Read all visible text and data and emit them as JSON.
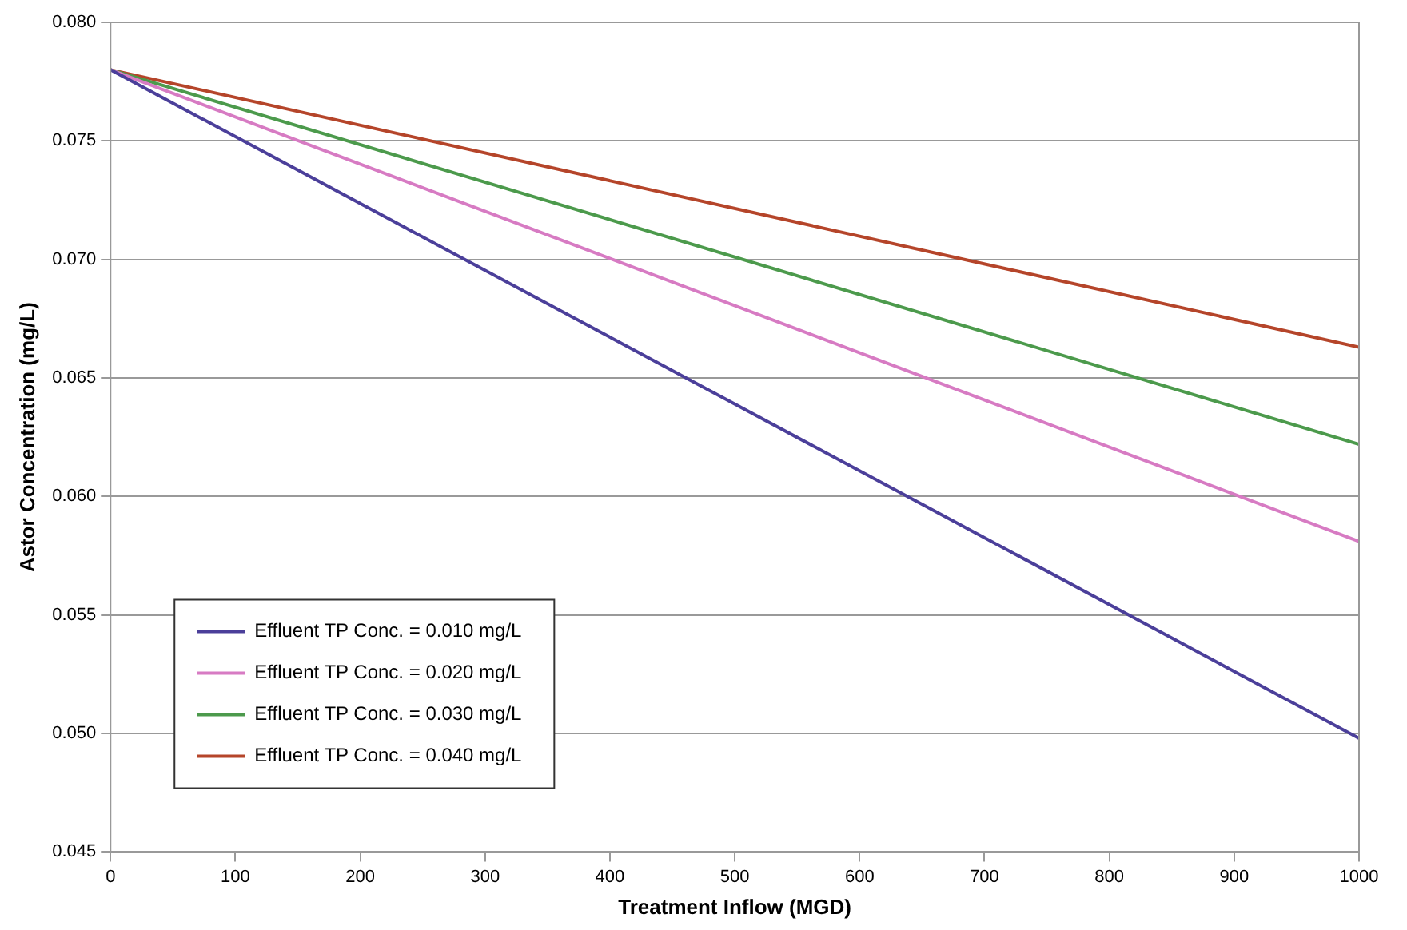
{
  "chart_data": {
    "type": "line",
    "xlabel": "Treatment Inflow (MGD)",
    "ylabel": "Astor Concentration (mg/L)",
    "x": [
      0,
      1000
    ],
    "series": [
      {
        "name": "Effluent TP Conc. = 0.010 mg/L",
        "color": "#4b3f9a",
        "values": [
          0.078,
          0.0498
        ]
      },
      {
        "name": "Effluent TP Conc. = 0.020 mg/L",
        "color": "#d77bc3",
        "values": [
          0.078,
          0.0581
        ]
      },
      {
        "name": "Effluent TP Conc. = 0.030 mg/L",
        "color": "#4c9a4c",
        "values": [
          0.078,
          0.0622
        ]
      },
      {
        "name": "Effluent TP Conc. = 0.040 mg/L",
        "color": "#b5452a",
        "values": [
          0.078,
          0.0663
        ]
      }
    ],
    "xlim": [
      0,
      1000
    ],
    "xticks": [
      0,
      100,
      200,
      300,
      400,
      500,
      600,
      700,
      800,
      900,
      1000
    ],
    "ylim": [
      0.045,
      0.08
    ],
    "yticks": [
      0.045,
      {
        "value": 0.05,
        "label": "0.050"
      },
      0.055,
      {
        "value": 0.06,
        "label": "0.060"
      },
      0.065,
      {
        "value": 0.07,
        "label": "0.070"
      },
      0.075,
      {
        "value": 0.08,
        "label": "0.080"
      }
    ],
    "grid": "y",
    "legend": "bottom left",
    "marker": "none",
    "line_style": "solid"
  }
}
